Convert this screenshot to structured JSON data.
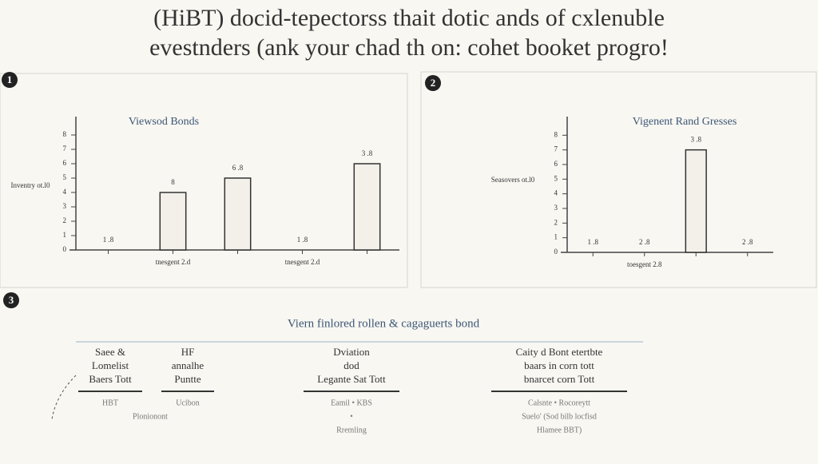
{
  "header": {
    "title_lines": [
      "(HiBT) docid-tepectorss thait dotic ands of cxlenuble",
      "evestnders (ank your chad th on: cohet booket progro!"
    ]
  },
  "chart_data": [
    {
      "type": "bar",
      "number": "1",
      "title": "Viewsod Bonds",
      "y_label": "Inventry ot.l0",
      "categories": [
        null,
        "tnesgent 2.d",
        null,
        "tnesgent 2.d",
        null
      ],
      "values": [
        0,
        4,
        5,
        0,
        6
      ],
      "bar_labels": [
        "1 .8",
        "8",
        "6 .8",
        "1 .8",
        "3 .8"
      ],
      "color": "#f3f0e9",
      "ylim": [
        0,
        9
      ],
      "yticks": [
        0,
        1,
        2,
        3,
        4,
        5,
        6,
        7,
        8
      ]
    },
    {
      "type": "bar",
      "number": "2",
      "title": "Vigenent Rand Gresses",
      "y_label": "Seasovers ot.l0",
      "categories": [
        null,
        "toesgent 2.8",
        null,
        null
      ],
      "values": [
        0,
        0,
        7,
        0
      ],
      "bar_labels": [
        "1 .8",
        "2 .8",
        "3 .8",
        "2 .8"
      ],
      "color": "#f3f0e9",
      "ylim": [
        0,
        9
      ],
      "yticks": [
        0,
        1,
        2,
        3,
        4,
        5,
        6,
        7,
        8
      ]
    }
  ],
  "section3": {
    "number": "3",
    "heading": "Viern finlored rollen & cagaguerts bond",
    "columns": [
      {
        "head": [
          "Saee &",
          "Lomelist",
          "Baers Tott"
        ],
        "notes": [
          "HBT",
          "Plonionont"
        ]
      },
      {
        "head": [
          "HF",
          "annalhe",
          "Puntte"
        ],
        "notes": [
          "Ucibon"
        ]
      },
      {
        "head": [
          "Dviation",
          "dod",
          "Legante Sat Tott"
        ],
        "notes": [
          "Eamil • KBS",
          "•",
          "Rremling"
        ]
      },
      {
        "head": [
          "Caity d Bont etertbte",
          "baars in corn tott",
          "bnarcet corn Tott"
        ],
        "notes": [
          "Calsnte • Rocoreytt",
          "Suelo' (Sod bilb locfisd",
          "Hlamee BBT)"
        ]
      }
    ]
  }
}
